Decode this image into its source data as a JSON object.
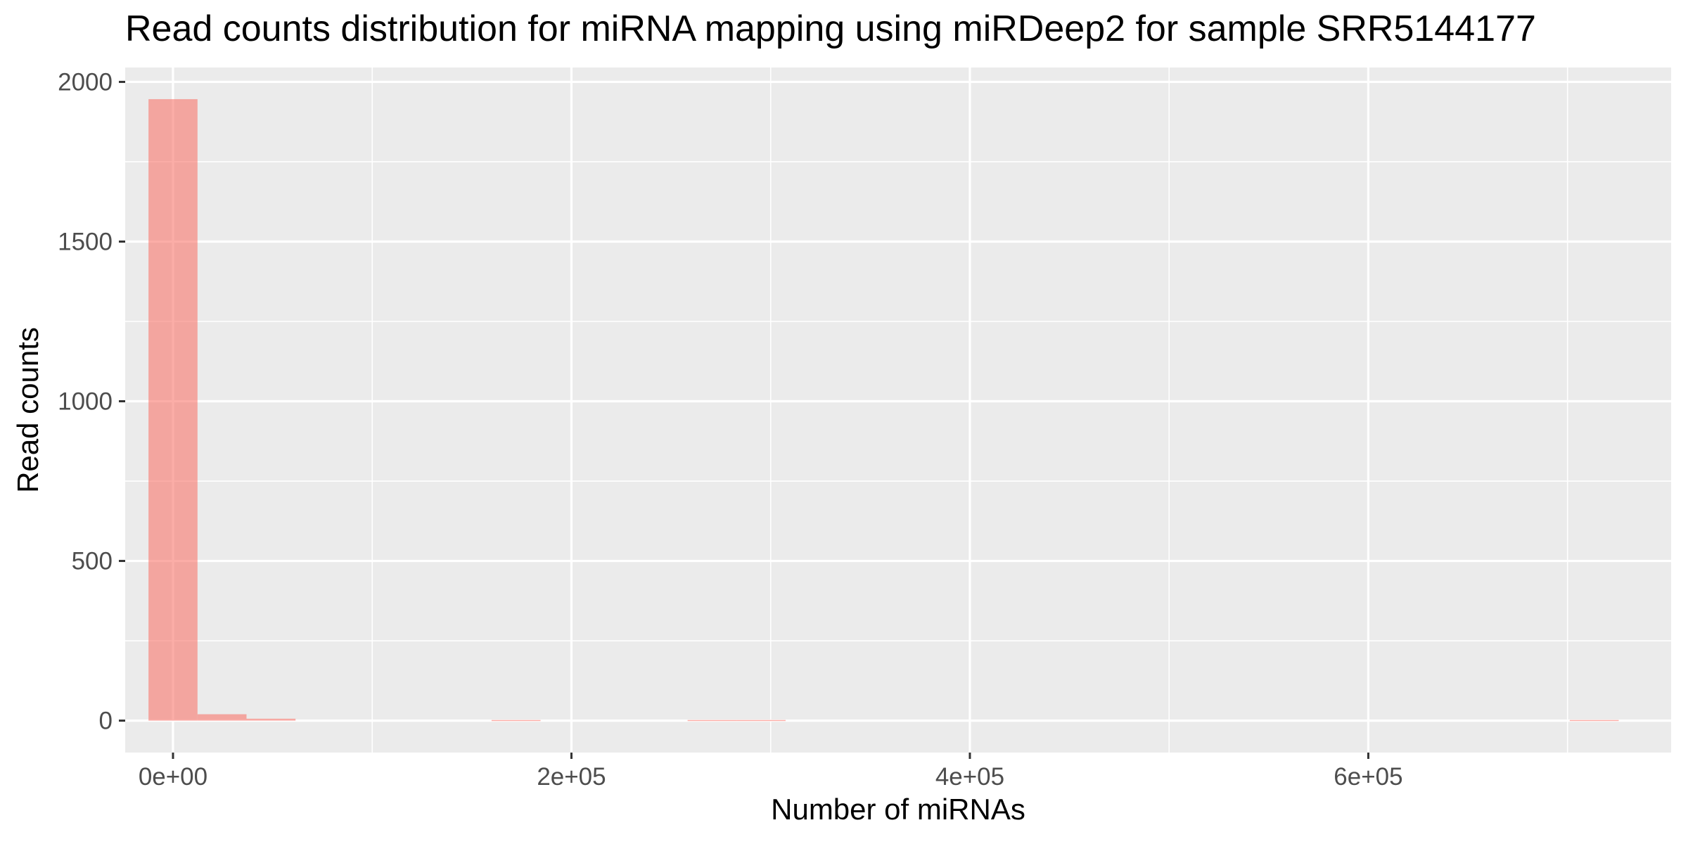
{
  "chart_data": {
    "type": "bar",
    "title": "Read counts distribution for miRNA mapping using miRDeep2 for sample SRR5144177",
    "xlabel": "Number of miRNAs",
    "ylabel": "Read counts",
    "xlim": [
      -24000,
      752000
    ],
    "ylim": [
      -100,
      2045
    ],
    "x_ticks": [
      0,
      200000,
      400000,
      600000
    ],
    "x_tick_labels": [
      "0e+00",
      "2e+05",
      "4e+05",
      "6e+05"
    ],
    "x_minor_ticks": [
      100000,
      300000,
      500000,
      700000
    ],
    "y_ticks": [
      0,
      500,
      1000,
      1500,
      2000
    ],
    "y_tick_labels": [
      "0",
      "500",
      "1000",
      "1500",
      "2000"
    ],
    "y_minor_ticks": [
      250,
      750,
      1250,
      1750
    ],
    "bin_width": 24600,
    "bins": [
      {
        "x": 0,
        "count": 1946
      },
      {
        "x": 24600,
        "count": 20
      },
      {
        "x": 49200,
        "count": 6
      },
      {
        "x": 172200,
        "count": 2
      },
      {
        "x": 270600,
        "count": 2
      },
      {
        "x": 295200,
        "count": 2
      },
      {
        "x": 713400,
        "count": 2
      }
    ],
    "fill_color": "#f8766d",
    "fill_opacity": 0.6,
    "panel_background": "#ebebeb",
    "grid": true,
    "legend": "none"
  }
}
